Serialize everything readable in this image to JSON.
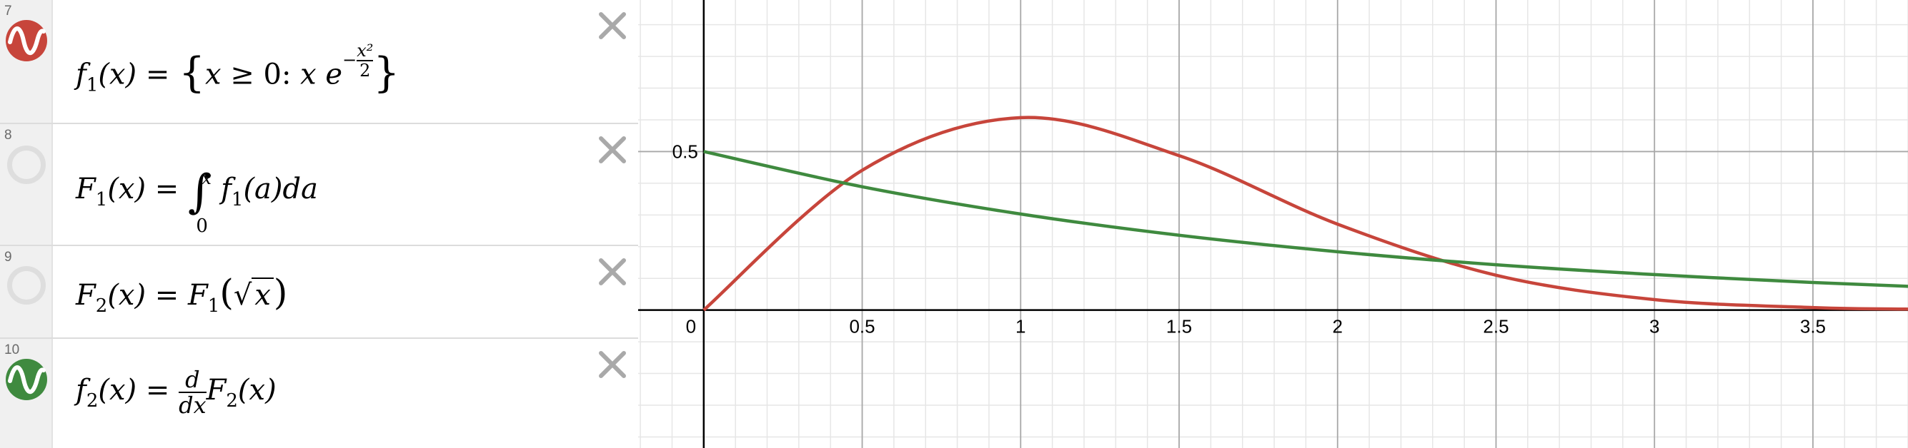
{
  "expressions": [
    {
      "number": "7",
      "color": "#c7453b",
      "visible": true,
      "icon": "sine-wave-icon",
      "latex": "f_1(x) = { x ≥ 0 : x e^(-x^2/2) }"
    },
    {
      "number": "8",
      "visible": false,
      "latex": "F_1(x) = ∫_0^x f_1(a) da"
    },
    {
      "number": "9",
      "visible": false,
      "latex": "F_2(x) = F_1(√x)"
    },
    {
      "number": "10",
      "color": "#3f8a3f",
      "visible": true,
      "icon": "sine-wave-icon",
      "latex": "f_2(x) = d/dx F_2(x)"
    }
  ],
  "graph": {
    "x_ticks": [
      "0",
      "0.5",
      "1",
      "1.5",
      "2",
      "2.5",
      "3",
      "3.5"
    ],
    "y_ticks": [
      "0.5"
    ],
    "xlim": [
      -0.207,
      3.8
    ],
    "ylim": [
      -0.435,
      0.978
    ],
    "grid": true
  },
  "chart_data": {
    "type": "line",
    "xlim": [
      -0.207,
      3.8
    ],
    "ylim": [
      -0.435,
      0.978
    ],
    "grid": true,
    "series": [
      {
        "name": "f_1",
        "color": "#c7453b",
        "x": [
          0,
          0.5,
          1,
          1.5,
          2,
          2.5,
          3,
          3.5,
          3.8
        ],
        "y": [
          0,
          0.441,
          0.607,
          0.487,
          0.271,
          0.11,
          0.033,
          0.008,
          0.003
        ]
      },
      {
        "name": "f_2",
        "color": "#3f8a3f",
        "x": [
          0,
          0.5,
          1,
          1.5,
          2,
          2.5,
          3,
          3.5,
          3.8
        ],
        "y": [
          0.5,
          0.389,
          0.303,
          0.236,
          0.184,
          0.143,
          0.112,
          0.087,
          0.075
        ]
      }
    ]
  }
}
